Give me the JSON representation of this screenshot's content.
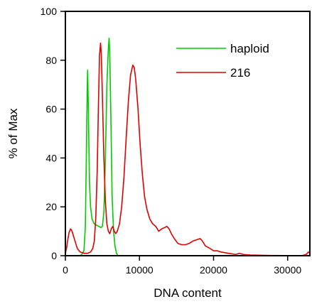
{
  "chart_data": {
    "type": "line",
    "title": "",
    "xlabel": "DNA content",
    "ylabel": "% of Max",
    "xlim": [
      0,
      33000
    ],
    "ylim": [
      0,
      100
    ],
    "x_ticks": [
      0,
      10000,
      20000,
      30000
    ],
    "x_tick_labels": [
      "0",
      "10000",
      "20000",
      "30000"
    ],
    "y_ticks": [
      0,
      20,
      40,
      60,
      80,
      100
    ],
    "y_tick_labels": [
      "0",
      "20",
      "40",
      "60",
      "80",
      "100"
    ],
    "grid": false,
    "legend_position": "top-right",
    "series": [
      {
        "name": "haploid",
        "color": "#00cc00",
        "points": [
          [
            2000,
            0
          ],
          [
            2200,
            0.5
          ],
          [
            2500,
            2
          ],
          [
            2700,
            12
          ],
          [
            2850,
            45
          ],
          [
            2950,
            70
          ],
          [
            3000,
            76
          ],
          [
            3100,
            60
          ],
          [
            3250,
            30
          ],
          [
            3400,
            20
          ],
          [
            3600,
            15
          ],
          [
            3900,
            13
          ],
          [
            4200,
            12.5
          ],
          [
            4500,
            12
          ],
          [
            4800,
            11.5
          ],
          [
            5000,
            12
          ],
          [
            5200,
            18
          ],
          [
            5400,
            40
          ],
          [
            5600,
            70
          ],
          [
            5800,
            85
          ],
          [
            5900,
            89
          ],
          [
            6000,
            82
          ],
          [
            6150,
            55
          ],
          [
            6300,
            25
          ],
          [
            6500,
            10
          ],
          [
            6700,
            4
          ],
          [
            6900,
            1
          ],
          [
            7100,
            0
          ]
        ]
      },
      {
        "name": "216",
        "color": "#e00000",
        "points": [
          [
            0,
            1
          ],
          [
            150,
            3
          ],
          [
            300,
            6
          ],
          [
            500,
            9.5
          ],
          [
            700,
            11
          ],
          [
            900,
            10
          ],
          [
            1200,
            7
          ],
          [
            1600,
            3
          ],
          [
            2000,
            1.5
          ],
          [
            2500,
            1
          ],
          [
            3000,
            1
          ],
          [
            3400,
            1.5
          ],
          [
            3700,
            3
          ],
          [
            3900,
            6
          ],
          [
            4100,
            15
          ],
          [
            4300,
            35
          ],
          [
            4450,
            60
          ],
          [
            4600,
            82
          ],
          [
            4750,
            87
          ],
          [
            4850,
            82
          ],
          [
            5000,
            65
          ],
          [
            5200,
            40
          ],
          [
            5400,
            22
          ],
          [
            5600,
            13
          ],
          [
            5800,
            10
          ],
          [
            6000,
            9
          ],
          [
            6200,
            11
          ],
          [
            6400,
            12
          ],
          [
            6600,
            10
          ],
          [
            6800,
            9
          ],
          [
            7000,
            10
          ],
          [
            7300,
            13
          ],
          [
            7600,
            20
          ],
          [
            7900,
            32
          ],
          [
            8200,
            48
          ],
          [
            8500,
            63
          ],
          [
            8800,
            74
          ],
          [
            9100,
            78
          ],
          [
            9300,
            77
          ],
          [
            9500,
            72
          ],
          [
            9800,
            60
          ],
          [
            10100,
            45
          ],
          [
            10400,
            33
          ],
          [
            10700,
            24
          ],
          [
            11000,
            19
          ],
          [
            11400,
            15
          ],
          [
            11800,
            13
          ],
          [
            12200,
            12
          ],
          [
            12600,
            10
          ],
          [
            13000,
            11
          ],
          [
            13400,
            11.5
          ],
          [
            13700,
            12
          ],
          [
            14000,
            11
          ],
          [
            14300,
            9
          ],
          [
            14700,
            7
          ],
          [
            15200,
            5
          ],
          [
            15700,
            4.5
          ],
          [
            16200,
            4.5
          ],
          [
            16700,
            5
          ],
          [
            17200,
            6
          ],
          [
            17700,
            6.5
          ],
          [
            18200,
            7
          ],
          [
            18500,
            6
          ],
          [
            18900,
            4
          ],
          [
            19500,
            3
          ],
          [
            20000,
            2
          ],
          [
            20500,
            2
          ],
          [
            21000,
            1.5
          ],
          [
            22000,
            1
          ],
          [
            23000,
            0.5
          ],
          [
            23500,
            1
          ],
          [
            24000,
            0.5
          ],
          [
            25000,
            0.3
          ],
          [
            26000,
            0.2
          ],
          [
            28000,
            0.1
          ],
          [
            30000,
            0.05
          ],
          [
            32000,
            0.1
          ],
          [
            32500,
            0.5
          ],
          [
            32800,
            1.5
          ],
          [
            33000,
            1
          ]
        ]
      }
    ]
  }
}
